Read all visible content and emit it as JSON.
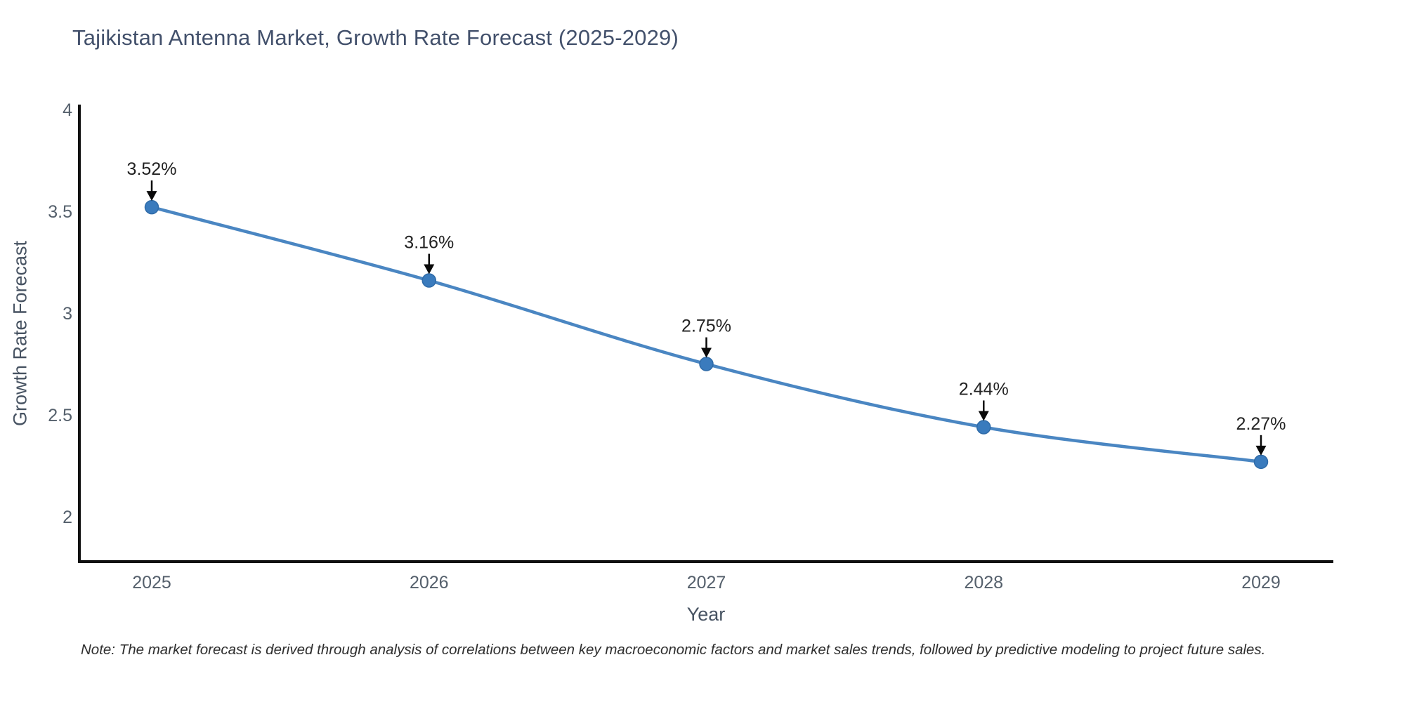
{
  "chart_data": {
    "type": "line",
    "title": "Tajikistan Antenna Market, Growth Rate Forecast (2025-2029)",
    "xlabel": "Year",
    "ylabel": "Growth Rate Forecast",
    "categories": [
      2025,
      2026,
      2027,
      2028,
      2029
    ],
    "series": [
      {
        "name": "Growth Rate Forecast",
        "values": [
          3.52,
          3.16,
          2.75,
          2.44,
          2.27
        ],
        "point_labels": [
          "3.52%",
          "3.16%",
          "2.75%",
          "2.44%",
          "2.27%"
        ]
      }
    ],
    "y_ticks": [
      2,
      2.5,
      3,
      3.5,
      4
    ],
    "y_tick_labels": [
      "2",
      "2.5",
      "3",
      "3.5",
      "4"
    ],
    "ylim": [
      1.78,
      4.02
    ],
    "grid": false,
    "legend_position": "none",
    "line_shape": "spline",
    "note": "Note: The market forecast is derived through analysis of correlations between key macroeconomic factors and market sales trends, followed by predictive modeling to project future sales.",
    "colors": {
      "line": "#4a86c2",
      "marker": "#3a7bbd",
      "marker_edge": "#2f6ba8",
      "axis_line": "#111111",
      "title_text": "#42506b",
      "axis_title_text": "#475362",
      "tick_label_text": "#55606c",
      "annotation_text": "#222222",
      "arrow": "#0a0a0a",
      "note_text": "#2e2e2e"
    }
  }
}
